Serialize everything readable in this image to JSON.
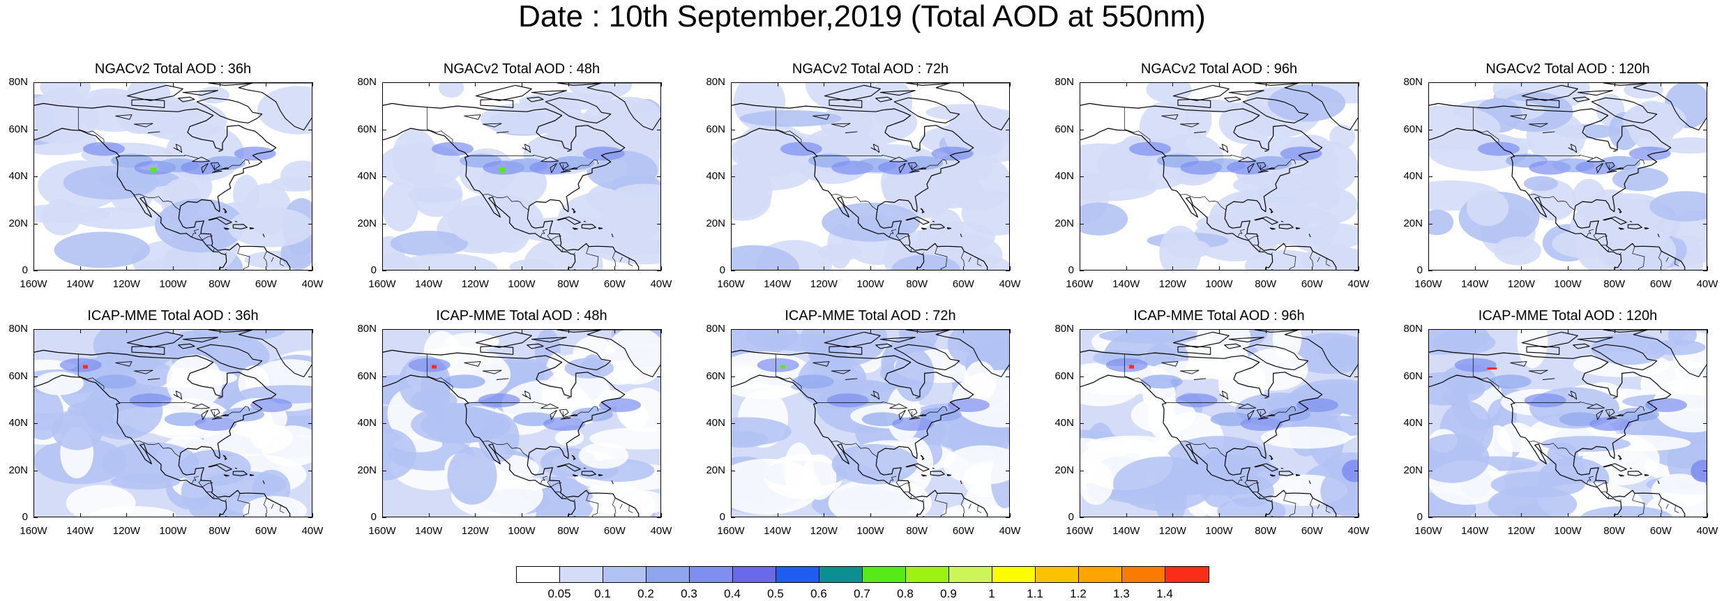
{
  "title": "Date : 10th September,2019 (Total AOD at 550nm)",
  "panels": [
    {
      "title": "NGACv2 Total AOD : 36h",
      "model": "NGACv2",
      "forecast_hour": "36h",
      "row": 0,
      "col": 0
    },
    {
      "title": "NGACv2 Total AOD : 48h",
      "model": "NGACv2",
      "forecast_hour": "48h",
      "row": 0,
      "col": 1
    },
    {
      "title": "NGACv2 Total AOD : 72h",
      "model": "NGACv2",
      "forecast_hour": "72h",
      "row": 0,
      "col": 2
    },
    {
      "title": "NGACv2 Total AOD : 96h",
      "model": "NGACv2",
      "forecast_hour": "96h",
      "row": 0,
      "col": 3
    },
    {
      "title": "NGACv2 Total AOD : 120h",
      "model": "NGACv2",
      "forecast_hour": "120h",
      "row": 0,
      "col": 4
    },
    {
      "title": "ICAP-MME Total AOD : 36h",
      "model": "ICAP-MME",
      "forecast_hour": "36h",
      "row": 1,
      "col": 0
    },
    {
      "title": "ICAP-MME Total AOD : 48h",
      "model": "ICAP-MME",
      "forecast_hour": "48h",
      "row": 1,
      "col": 1
    },
    {
      "title": "ICAP-MME Total AOD : 72h",
      "model": "ICAP-MME",
      "forecast_hour": "72h",
      "row": 1,
      "col": 2
    },
    {
      "title": "ICAP-MME Total AOD : 96h",
      "model": "ICAP-MME",
      "forecast_hour": "96h",
      "row": 1,
      "col": 3
    },
    {
      "title": "ICAP-MME Total AOD : 120h",
      "model": "ICAP-MME",
      "forecast_hour": "120h",
      "row": 1,
      "col": 4
    }
  ],
  "lat_ticks": [
    "80N",
    "60N",
    "40N",
    "20N",
    "0"
  ],
  "lon_ticks": [
    "160W",
    "140W",
    "120W",
    "100W",
    "80W",
    "60W",
    "40W"
  ],
  "colorbar": {
    "labels": [
      "0.05",
      "0.1",
      "0.2",
      "0.3",
      "0.4",
      "0.5",
      "0.6",
      "0.7",
      "0.8",
      "0.9",
      "1",
      "1.1",
      "1.2",
      "1.3",
      "1.4"
    ],
    "colors": [
      "#ffffff",
      "#d4dcf7",
      "#b2c2f3",
      "#8fa6ee",
      "#7e8ff0",
      "#6a69ec",
      "#1f5df0",
      "#0a9090",
      "#58ea18",
      "#9ef213",
      "#cdf558",
      "#fdfd00",
      "#fcc200",
      "#fca500",
      "#fb7a00",
      "#f92d18"
    ]
  },
  "map_colors": {
    "ocean_low": "#d4dcf7",
    "mid": "#b2c2f3",
    "high": "#8fa6ee",
    "higher": "#7e8ff0",
    "hotspot_green": "#58ea18",
    "hotspot_red": "#f92d18",
    "coast": "#000000"
  }
}
